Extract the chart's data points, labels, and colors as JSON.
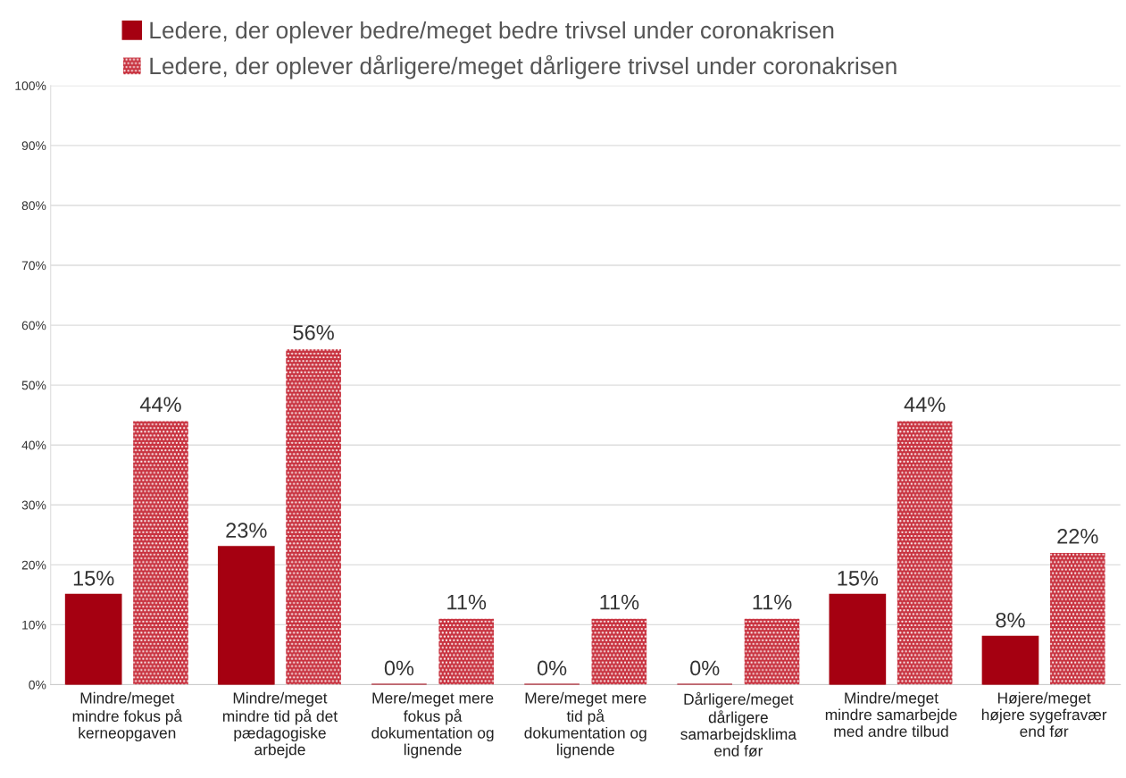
{
  "chart_data": {
    "type": "bar",
    "categories": [
      "Mindre/meget\nmindre fokus på\nkerneopgaven",
      "Mindre/meget\nmindre tid på det\npædagogiske\narbejde",
      "Mere/meget mere\nfokus på\ndokumentation og\nlignende",
      "Mere/meget mere\ntid på\ndokumentation og\nlignende",
      "Dårligere/meget\ndårligere\nsamarbejdsklima\nend før",
      "Mindre/meget\nmindre samarbejde\nmed andre tilbud",
      "Højere/meget\nhøjere sygefravær\nend før"
    ],
    "series": [
      {
        "name": "Ledere, der oplever bedre/meget bedre trivsel under coronakrisen",
        "color": "#a50011",
        "values": [
          15,
          23,
          0,
          0,
          0,
          15,
          8
        ],
        "value_labels": [
          "15%",
          "23%",
          "0%",
          "0%",
          "0%",
          "15%",
          "8%"
        ]
      },
      {
        "name": "Ledere, der oplever dårligere/meget dårligere trivsel under coronakrisen",
        "color": "#c8323f",
        "values": [
          44,
          56,
          11,
          11,
          11,
          44,
          22
        ],
        "value_labels": [
          "44%",
          "56%",
          "11%",
          "11%",
          "11%",
          "44%",
          "22%"
        ]
      }
    ],
    "ylim": [
      0,
      100
    ],
    "yticks": [
      {
        "value": 0,
        "label": "0%"
      },
      {
        "value": 10,
        "label": "10%"
      },
      {
        "value": 20,
        "label": "20%"
      },
      {
        "value": 30,
        "label": "30%"
      },
      {
        "value": 40,
        "label": "40%"
      },
      {
        "value": 50,
        "label": "50%"
      },
      {
        "value": 60,
        "label": "60%"
      },
      {
        "value": 70,
        "label": "70%"
      },
      {
        "value": 80,
        "label": "80%"
      },
      {
        "value": 90,
        "label": "90%"
      },
      {
        "value": 100,
        "label": "100%"
      }
    ],
    "grid": "y",
    "legend": "top"
  }
}
